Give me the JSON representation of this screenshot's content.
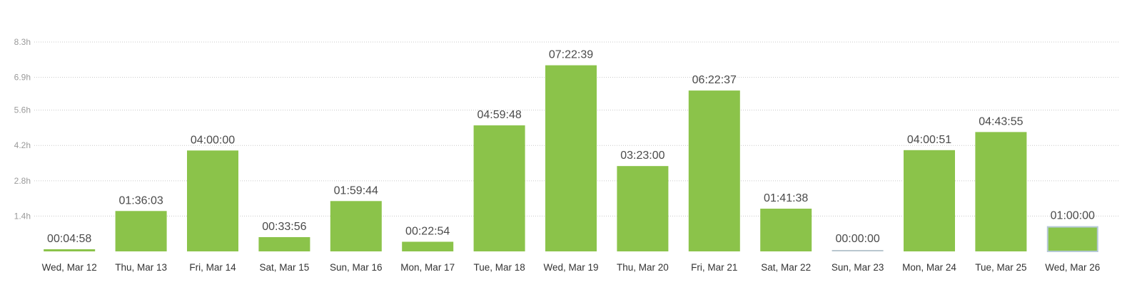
{
  "colors": {
    "bar": "#8bc34a",
    "bar_highlight_border": "#b5c9d6",
    "baseline": "#b9c7cf"
  },
  "chart_data": {
    "type": "bar",
    "categories": [
      "Wed, Mar 12",
      "Thu, Mar 13",
      "Fri, Mar 14",
      "Sat, Mar 15",
      "Sun, Mar 16",
      "Mon, Mar 17",
      "Tue, Mar 18",
      "Wed, Mar 19",
      "Thu, Mar 20",
      "Fri, Mar 21",
      "Sat, Mar 22",
      "Sun, Mar 23",
      "Mon, Mar 24",
      "Tue, Mar 25",
      "Wed, Mar 26"
    ],
    "values": [
      0.083,
      1.601,
      4.0,
      0.566,
      1.996,
      0.382,
      4.996,
      7.378,
      3.383,
      6.377,
      1.694,
      0.0,
      4.014,
      4.732,
      1.0
    ],
    "value_labels": [
      "00:04:58",
      "01:36:03",
      "04:00:00",
      "00:33:56",
      "01:59:44",
      "00:22:54",
      "04:59:48",
      "07:22:39",
      "03:23:00",
      "06:22:37",
      "01:41:38",
      "00:00:00",
      "04:00:51",
      "04:43:55",
      "01:00:00"
    ],
    "highlighted_index": 14,
    "y_ticks": [
      1.4,
      2.8,
      4.2,
      5.6,
      6.9,
      8.3
    ],
    "y_tick_labels": [
      "1.4h",
      "2.8h",
      "4.2h",
      "5.6h",
      "6.9h",
      "8.3h"
    ],
    "ylim": [
      0,
      8.3
    ],
    "grid": true,
    "legend": "none",
    "unit": "h",
    "title": "",
    "xlabel": "",
    "ylabel": ""
  }
}
